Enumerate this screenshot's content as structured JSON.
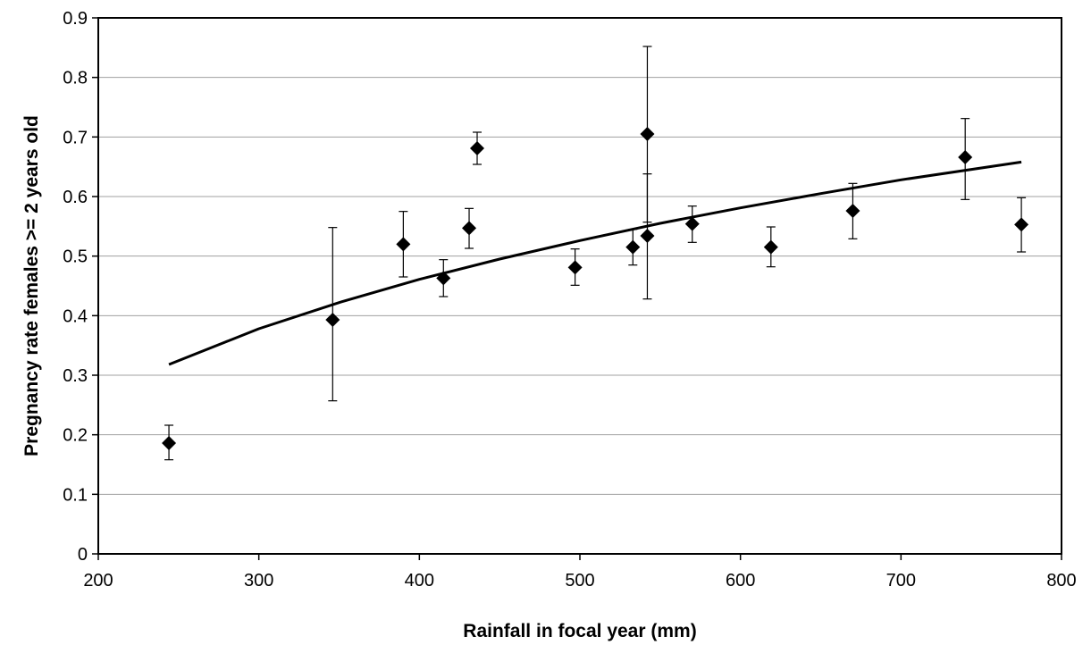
{
  "chart_data": {
    "type": "scatter",
    "title": "",
    "xlabel": "Rainfall in focal year (mm)",
    "ylabel": "Pregnancy rate females >= 2 years old",
    "xlim": [
      200,
      800
    ],
    "ylim": [
      0,
      0.9
    ],
    "x_ticks": [
      "200",
      "300",
      "400",
      "500",
      "600",
      "700",
      "800"
    ],
    "y_ticks": [
      "0",
      "0.1",
      "0.2",
      "0.3",
      "0.4",
      "0.5",
      "0.6",
      "0.7",
      "0.8",
      "0.9"
    ],
    "grid": "horizontal",
    "legend": "none",
    "colors": {
      "marker": "#000000",
      "grid": "#a0a0a0",
      "trendline": "#000000"
    },
    "points": [
      {
        "x": 244,
        "y": 0.186,
        "err_low": 0.158,
        "err_high": 0.216
      },
      {
        "x": 346,
        "y": 0.393,
        "err_low": 0.257,
        "err_high": 0.548
      },
      {
        "x": 390,
        "y": 0.52,
        "err_low": 0.465,
        "err_high": 0.575
      },
      {
        "x": 415,
        "y": 0.463,
        "err_low": 0.432,
        "err_high": 0.494
      },
      {
        "x": 431,
        "y": 0.547,
        "err_low": 0.513,
        "err_high": 0.58
      },
      {
        "x": 436,
        "y": 0.681,
        "err_low": 0.654,
        "err_high": 0.708
      },
      {
        "x": 497,
        "y": 0.481,
        "err_low": 0.451,
        "err_high": 0.512
      },
      {
        "x": 533,
        "y": 0.515,
        "err_low": 0.485,
        "err_high": 0.545
      },
      {
        "x": 542,
        "y": 0.705,
        "err_low": 0.557,
        "err_high": 0.852
      },
      {
        "x": 542,
        "y": 0.534,
        "err_low": 0.428,
        "err_high": 0.638
      },
      {
        "x": 570,
        "y": 0.554,
        "err_low": 0.523,
        "err_high": 0.584
      },
      {
        "x": 619,
        "y": 0.515,
        "err_low": 0.482,
        "err_high": 0.549
      },
      {
        "x": 670,
        "y": 0.576,
        "err_low": 0.529,
        "err_high": 0.622
      },
      {
        "x": 740,
        "y": 0.666,
        "err_low": 0.595,
        "err_high": 0.731
      },
      {
        "x": 775,
        "y": 0.553,
        "err_low": 0.507,
        "err_high": 0.598
      }
    ],
    "trendline": {
      "type": "logarithmic",
      "x": [
        244,
        300,
        350,
        400,
        450,
        500,
        550,
        600,
        650,
        700,
        775
      ],
      "y": [
        0.318,
        0.378,
        0.422,
        0.461,
        0.495,
        0.526,
        0.555,
        0.581,
        0.605,
        0.628,
        0.658
      ]
    }
  }
}
